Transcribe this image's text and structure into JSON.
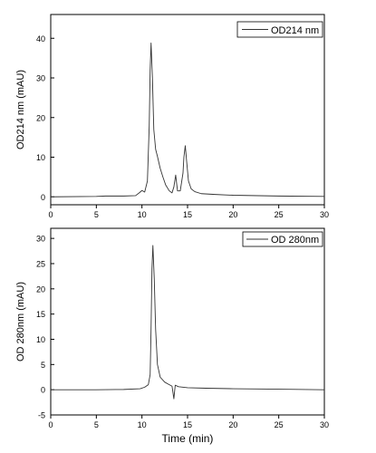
{
  "chart_data": [
    {
      "type": "line",
      "ylabel": "OD214 nm (mAU)",
      "xlabel": "",
      "xlim": [
        0,
        30
      ],
      "ylim": [
        -2,
        46
      ],
      "xticks": [
        0,
        5,
        10,
        15,
        20,
        25,
        30
      ],
      "yticks": [
        0,
        10,
        20,
        30,
        40
      ],
      "legend_position": "top-right",
      "grid": false,
      "series": [
        {
          "name": "OD214 nm",
          "color": "#333333",
          "points": [
            [
              0,
              0
            ],
            [
              5,
              0.1
            ],
            [
              6,
              0.2
            ],
            [
              8,
              0.2
            ],
            [
              9.3,
              0.3
            ],
            [
              9.7,
              1
            ],
            [
              10,
              1.6
            ],
            [
              10.3,
              1.2
            ],
            [
              10.6,
              4
            ],
            [
              10.8,
              18
            ],
            [
              10.9,
              32
            ],
            [
              11,
              38.8
            ],
            [
              11.15,
              30
            ],
            [
              11.3,
              17
            ],
            [
              11.5,
              12
            ],
            [
              11.7,
              10.2
            ],
            [
              12,
              7.2
            ],
            [
              12.3,
              5
            ],
            [
              12.6,
              3
            ],
            [
              13,
              1.5
            ],
            [
              13.3,
              1
            ],
            [
              13.5,
              2.5
            ],
            [
              13.7,
              5.5
            ],
            [
              13.9,
              1.5
            ],
            [
              14.2,
              1.5
            ],
            [
              14.5,
              6
            ],
            [
              14.6,
              10
            ],
            [
              14.75,
              12.9
            ],
            [
              14.9,
              9
            ],
            [
              15.1,
              4
            ],
            [
              15.4,
              2
            ],
            [
              15.8,
              1.3
            ],
            [
              16.5,
              0.8
            ],
            [
              18,
              0.6
            ],
            [
              20,
              0.4
            ],
            [
              25,
              0.2
            ],
            [
              30,
              0.1
            ]
          ]
        }
      ]
    },
    {
      "type": "line",
      "ylabel": "OD 280nm (mAU)",
      "xlabel": "Time (min)",
      "xlim": [
        0,
        30
      ],
      "ylim": [
        -5,
        32
      ],
      "xticks": [
        0,
        5,
        10,
        15,
        20,
        25,
        30
      ],
      "yticks": [
        -5,
        0,
        5,
        10,
        15,
        20,
        25,
        30
      ],
      "legend_position": "top-right",
      "grid": false,
      "series": [
        {
          "name": "OD 280nm",
          "color": "#333333",
          "points": [
            [
              0,
              0
            ],
            [
              5,
              0
            ],
            [
              8,
              0.05
            ],
            [
              9.8,
              0.2
            ],
            [
              10.3,
              0.5
            ],
            [
              10.7,
              1
            ],
            [
              10.9,
              3
            ],
            [
              11,
              12
            ],
            [
              11.1,
              24
            ],
            [
              11.2,
              28.6
            ],
            [
              11.35,
              22
            ],
            [
              11.5,
              12
            ],
            [
              11.7,
              5
            ],
            [
              12,
              2.5
            ],
            [
              12.5,
              1.5
            ],
            [
              13,
              1
            ],
            [
              13.3,
              0.7
            ],
            [
              13.5,
              -1.8
            ],
            [
              13.65,
              0.9
            ],
            [
              14,
              0.6
            ],
            [
              15,
              0.4
            ],
            [
              17,
              0.3
            ],
            [
              20,
              0.2
            ],
            [
              25,
              0.1
            ],
            [
              30,
              0
            ]
          ]
        }
      ]
    }
  ]
}
